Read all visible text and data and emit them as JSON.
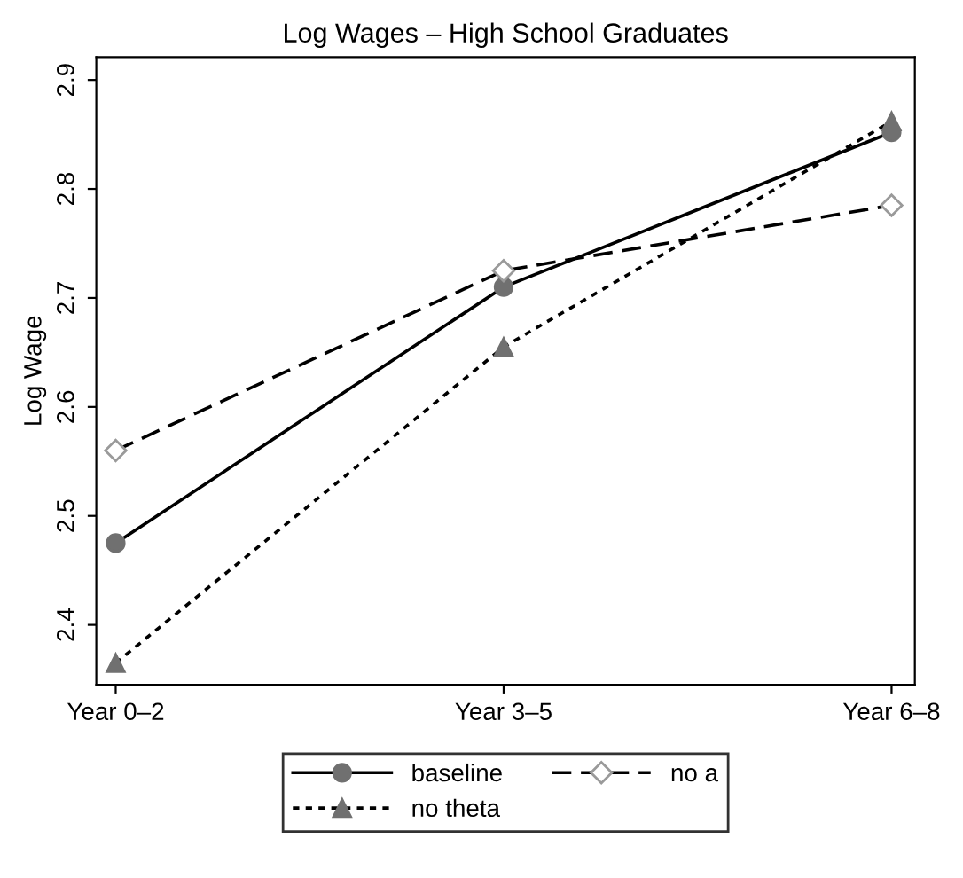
{
  "chart_data": {
    "type": "line",
    "title": "Log Wages – High School Graduates",
    "ylabel": "Log Wage",
    "categories": [
      "Year 0–2",
      "Year 3–5",
      "Year 6–8"
    ],
    "series": [
      {
        "name": "baseline",
        "color": "#000000",
        "values": [
          2.475,
          2.71,
          2.852
        ],
        "marker": "circle",
        "line_style": "solid"
      },
      {
        "name": "no a",
        "color": "#000000",
        "values": [
          2.56,
          2.725,
          2.785
        ],
        "marker": "diamond",
        "line_style": "dashed"
      },
      {
        "name": "no theta",
        "color": "#000000",
        "values": [
          2.365,
          2.655,
          2.862
        ],
        "marker": "triangle",
        "line_style": "dotted"
      }
    ],
    "ylim": [
      2.345,
      2.921
    ],
    "yticks": [
      2.4,
      2.5,
      2.6,
      2.7,
      2.8,
      2.9
    ],
    "grid": false,
    "legend": "bottom"
  }
}
